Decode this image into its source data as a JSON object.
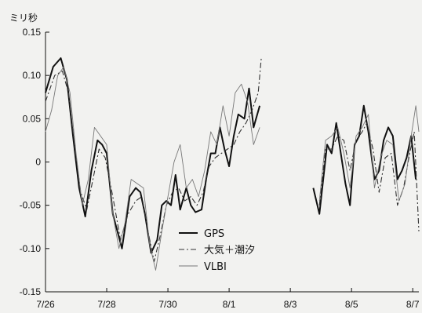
{
  "chart_data": {
    "type": "line",
    "unit_label": "ミリ秒",
    "ylim": [
      -0.15,
      0.15
    ],
    "yticks": [
      -0.15,
      -0.1,
      -0.05,
      0,
      0.05,
      0.1,
      0.15
    ],
    "ytick_labels": [
      "-0.15",
      "-0.10",
      "-0.05",
      "0",
      "0.05",
      "0.10",
      "0.15"
    ],
    "xlim": [
      0,
      12.2
    ],
    "xticks": [
      0,
      2,
      4,
      6,
      8,
      10,
      12
    ],
    "xtick_labels": [
      "7/26",
      "7/28",
      "7/30",
      "8/1",
      "8/3",
      "8/5",
      "8/7"
    ],
    "grid": false,
    "legend_position": "lower-center",
    "colors": {
      "gps": "#111111",
      "model": "#333333",
      "vlbi": "#777777"
    },
    "series": [
      {
        "name": "GPS",
        "style": "solid-thick",
        "segments": [
          [
            [
              0.0,
              0.08
            ],
            [
              0.25,
              0.11
            ],
            [
              0.5,
              0.12
            ],
            [
              0.7,
              0.095
            ],
            [
              0.9,
              0.03
            ],
            [
              1.1,
              -0.03
            ],
            [
              1.3,
              -0.063
            ],
            [
              1.5,
              -0.01
            ],
            [
              1.7,
              0.025
            ],
            [
              1.85,
              0.02
            ],
            [
              2.0,
              0.01
            ],
            [
              2.2,
              -0.06
            ],
            [
              2.5,
              -0.1
            ],
            [
              2.75,
              -0.04
            ],
            [
              2.95,
              -0.03
            ],
            [
              3.1,
              -0.035
            ],
            [
              3.25,
              -0.06
            ],
            [
              3.45,
              -0.105
            ],
            [
              3.65,
              -0.09
            ],
            [
              3.8,
              -0.05
            ],
            [
              3.95,
              -0.045
            ],
            [
              4.1,
              -0.05
            ],
            [
              4.25,
              -0.015
            ],
            [
              4.4,
              -0.055
            ],
            [
              4.6,
              -0.03
            ],
            [
              4.75,
              -0.05
            ],
            [
              4.9,
              -0.058
            ],
            [
              5.1,
              -0.055
            ],
            [
              5.25,
              -0.02
            ],
            [
              5.4,
              0.01
            ],
            [
              5.55,
              0.01
            ],
            [
              5.7,
              0.04
            ],
            [
              5.85,
              0.015
            ],
            [
              6.0,
              -0.005
            ],
            [
              6.15,
              0.03
            ],
            [
              6.3,
              0.055
            ],
            [
              6.5,
              0.05
            ],
            [
              6.65,
              0.085
            ],
            [
              6.8,
              0.04
            ],
            [
              7.0,
              0.065
            ]
          ],
          [
            [
              8.75,
              -0.03
            ],
            [
              8.95,
              -0.06
            ],
            [
              9.2,
              0.02
            ],
            [
              9.35,
              0.01
            ],
            [
              9.5,
              0.045
            ],
            [
              9.65,
              0.01
            ],
            [
              9.8,
              -0.025
            ],
            [
              9.95,
              -0.05
            ],
            [
              10.1,
              0.02
            ],
            [
              10.25,
              0.03
            ],
            [
              10.4,
              0.065
            ],
            [
              10.55,
              0.035
            ],
            [
              10.75,
              -0.02
            ],
            [
              10.9,
              -0.01
            ],
            [
              11.05,
              0.025
            ],
            [
              11.2,
              0.04
            ],
            [
              11.35,
              0.03
            ],
            [
              11.5,
              -0.02
            ],
            [
              11.65,
              -0.01
            ],
            [
              11.8,
              0.005
            ],
            [
              11.95,
              0.03
            ],
            [
              12.1,
              -0.02
            ]
          ]
        ]
      },
      {
        "name": "大気＋潮汐",
        "style": "dash-dot",
        "segments": [
          [
            [
              0.0,
              0.07
            ],
            [
              0.3,
              0.1
            ],
            [
              0.55,
              0.105
            ],
            [
              0.75,
              0.08
            ],
            [
              0.95,
              0.02
            ],
            [
              1.15,
              -0.035
            ],
            [
              1.35,
              -0.055
            ],
            [
              1.55,
              -0.02
            ],
            [
              1.75,
              0.015
            ],
            [
              1.95,
              0.005
            ],
            [
              2.2,
              -0.04
            ],
            [
              2.45,
              -0.09
            ],
            [
              2.7,
              -0.06
            ],
            [
              2.95,
              -0.045
            ],
            [
              3.15,
              -0.04
            ],
            [
              3.35,
              -0.08
            ],
            [
              3.55,
              -0.115
            ],
            [
              3.75,
              -0.085
            ],
            [
              3.95,
              -0.05
            ],
            [
              4.15,
              -0.035
            ],
            [
              4.35,
              -0.03
            ],
            [
              4.55,
              -0.045
            ],
            [
              4.75,
              -0.04
            ],
            [
              4.95,
              -0.05
            ],
            [
              5.15,
              -0.035
            ],
            [
              5.35,
              -0.005
            ],
            [
              5.55,
              0.005
            ],
            [
              5.75,
              0.01
            ],
            [
              5.95,
              0.015
            ],
            [
              6.15,
              0.02
            ],
            [
              6.35,
              0.035
            ],
            [
              6.55,
              0.045
            ],
            [
              6.75,
              0.06
            ],
            [
              6.95,
              0.08
            ],
            [
              7.05,
              0.12
            ]
          ],
          [
            [
              8.95,
              -0.05
            ],
            [
              9.15,
              0.015
            ],
            [
              9.35,
              0.015
            ],
            [
              9.55,
              0.03
            ],
            [
              9.75,
              0.025
            ],
            [
              9.95,
              -0.01
            ],
            [
              10.15,
              0.025
            ],
            [
              10.35,
              0.035
            ],
            [
              10.5,
              0.045
            ],
            [
              10.7,
              0.015
            ],
            [
              10.9,
              -0.035
            ],
            [
              11.1,
              0.005
            ],
            [
              11.3,
              0.01
            ],
            [
              11.5,
              -0.05
            ],
            [
              11.7,
              -0.03
            ],
            [
              11.9,
              0.01
            ],
            [
              12.05,
              0.035
            ],
            [
              12.2,
              -0.08
            ]
          ]
        ]
      },
      {
        "name": "VLBI",
        "style": "solid-thin",
        "segments": [
          [
            [
              0.0,
              0.035
            ],
            [
              0.2,
              0.06
            ],
            [
              0.4,
              0.1
            ],
            [
              0.6,
              0.11
            ],
            [
              0.8,
              0.08
            ],
            [
              1.0,
              0.01
            ],
            [
              1.2,
              -0.05
            ],
            [
              1.4,
              -0.02
            ],
            [
              1.6,
              0.04
            ],
            [
              1.8,
              0.03
            ],
            [
              2.0,
              0.02
            ],
            [
              2.2,
              -0.06
            ],
            [
              2.4,
              -0.1
            ],
            [
              2.6,
              -0.07
            ],
            [
              2.8,
              -0.02
            ],
            [
              3.0,
              -0.025
            ],
            [
              3.2,
              -0.03
            ],
            [
              3.4,
              -0.095
            ],
            [
              3.6,
              -0.125
            ],
            [
              3.8,
              -0.08
            ],
            [
              4.0,
              -0.04
            ],
            [
              4.2,
              0.0
            ],
            [
              4.4,
              0.02
            ],
            [
              4.6,
              -0.03
            ],
            [
              4.8,
              -0.02
            ],
            [
              5.0,
              -0.04
            ],
            [
              5.2,
              -0.01
            ],
            [
              5.4,
              0.035
            ],
            [
              5.6,
              0.02
            ],
            [
              5.8,
              0.065
            ],
            [
              6.0,
              0.03
            ],
            [
              6.2,
              0.08
            ],
            [
              6.4,
              0.09
            ],
            [
              6.6,
              0.07
            ],
            [
              6.8,
              0.02
            ],
            [
              7.0,
              0.04
            ]
          ],
          [
            [
              8.95,
              -0.045
            ],
            [
              9.15,
              0.025
            ],
            [
              9.35,
              0.03
            ],
            [
              9.55,
              0.04
            ],
            [
              9.75,
              0.01
            ],
            [
              9.95,
              -0.03
            ],
            [
              10.15,
              0.03
            ],
            [
              10.35,
              0.04
            ],
            [
              10.55,
              0.055
            ],
            [
              10.75,
              -0.03
            ],
            [
              10.95,
              0.005
            ],
            [
              11.15,
              0.025
            ],
            [
              11.35,
              0.02
            ],
            [
              11.55,
              -0.045
            ],
            [
              11.75,
              -0.025
            ],
            [
              11.95,
              0.03
            ],
            [
              12.1,
              0.065
            ],
            [
              12.2,
              0.035
            ]
          ]
        ]
      }
    ]
  }
}
